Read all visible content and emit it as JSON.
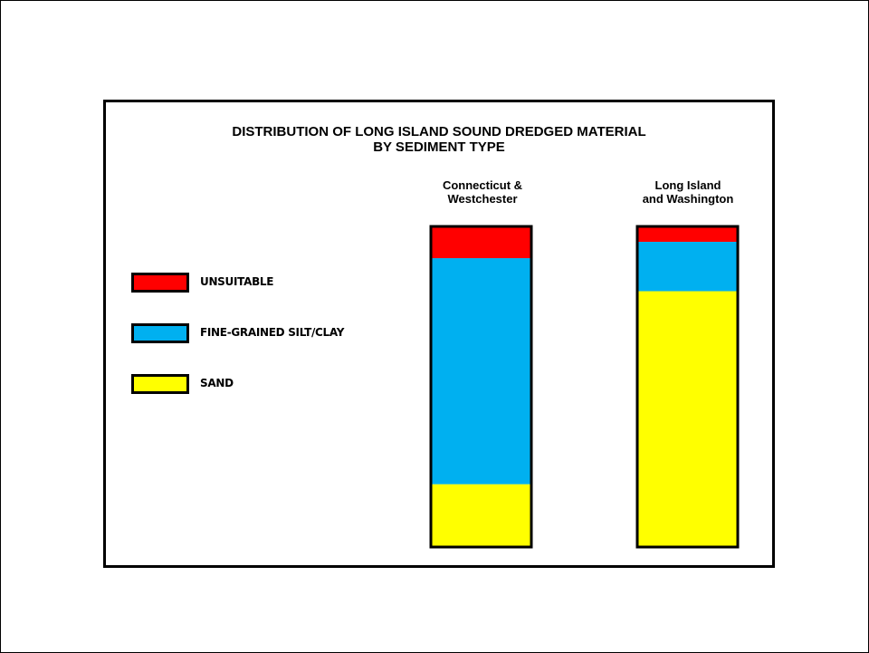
{
  "chart_data": {
    "type": "bar",
    "stacked": true,
    "normalized": true,
    "title_lines": [
      "DISTRIBUTION OF LONG ISLAND SOUND DREDGED MATERIAL",
      "BY SEDIMENT TYPE"
    ],
    "categories": [
      {
        "line1": "Connecticut &",
        "line2": "Westchester"
      },
      {
        "line1": "Long Island",
        "line2": "and Washington"
      }
    ],
    "series": [
      {
        "name": "SAND",
        "color": "#ffff00",
        "values": [
          0.196,
          0.798
        ]
      },
      {
        "name": "FINE-GRAINED SILT/CLAY",
        "color": "#00b0f0",
        "values": [
          0.705,
          0.154
        ]
      },
      {
        "name": "UNSUITABLE",
        "color": "#ff0000",
        "values": [
          0.099,
          0.048
        ]
      }
    ],
    "legend_order": [
      "UNSUITABLE",
      "FINE-GRAINED SILT/CLAY",
      "SAND"
    ],
    "legend_position": "left",
    "axes": "none",
    "grid": false
  }
}
